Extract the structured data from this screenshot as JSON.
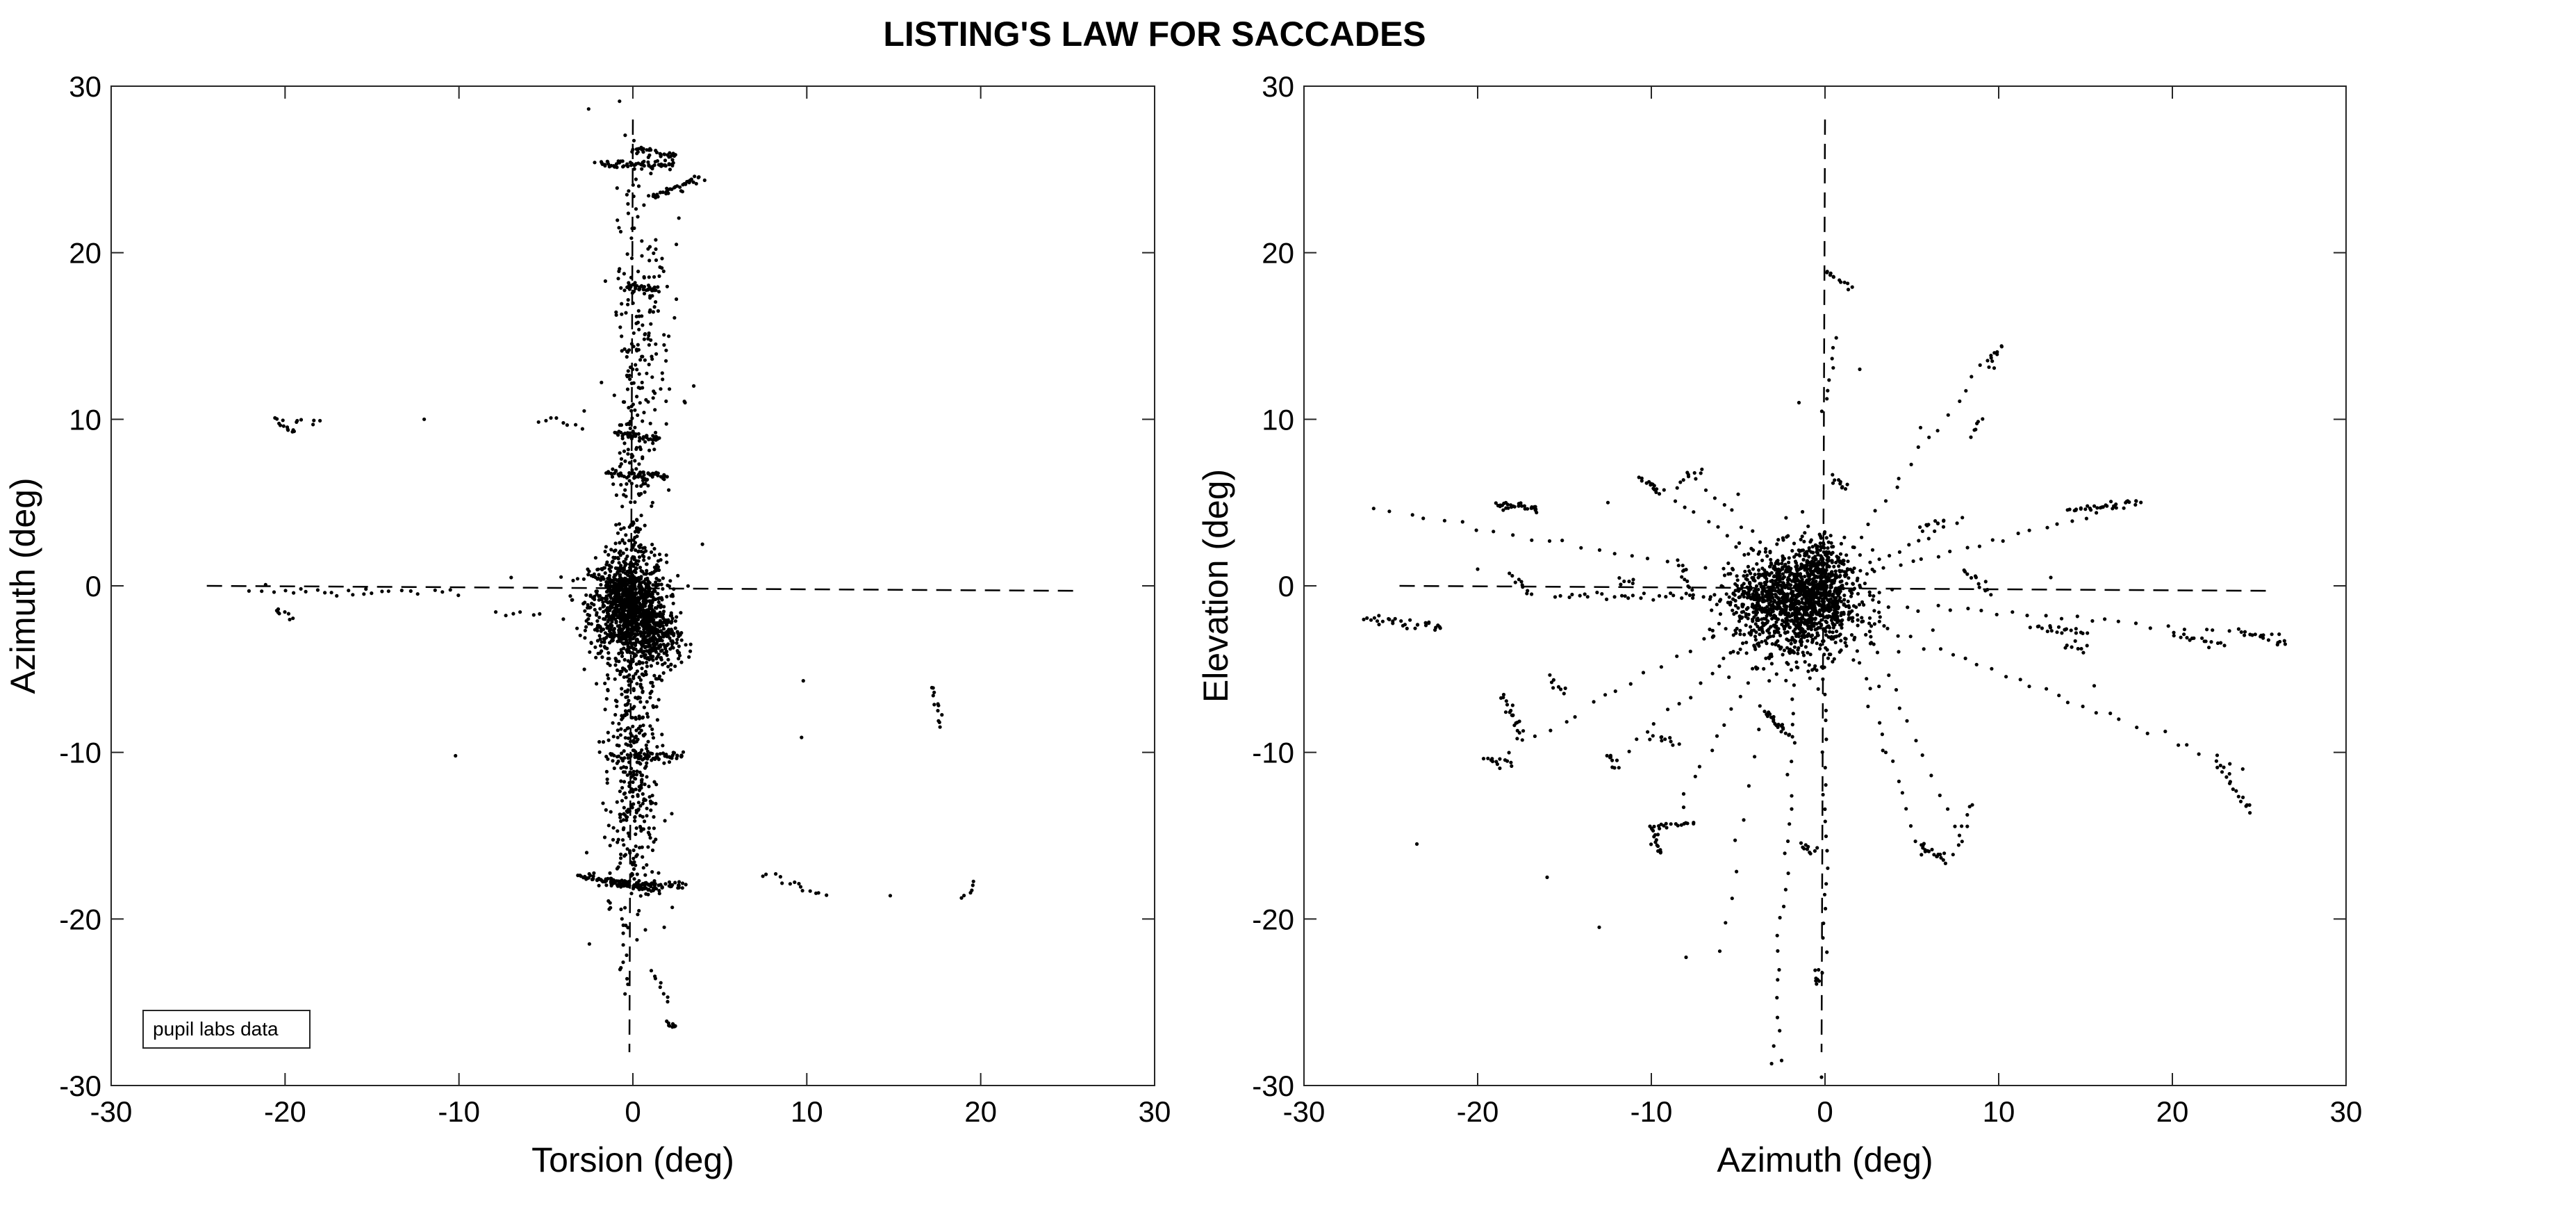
{
  "figure": {
    "title": "LISTING'S LAW FOR SACCADES"
  },
  "chart_data": [
    {
      "type": "scatter",
      "xlabel": "Torsion (deg)",
      "ylabel": "Azimuth (deg)",
      "xlim": [
        -30,
        30
      ],
      "ylim": [
        -30,
        30
      ],
      "xticks": [
        -30,
        -20,
        -10,
        0,
        10,
        20,
        30
      ],
      "yticks": [
        -30,
        -20,
        -10,
        0,
        10,
        20,
        30
      ],
      "grid": false,
      "legend": {
        "label": "pupil labs data",
        "placement": "bottom-left"
      },
      "reference_lines": [
        {
          "style": "dashed",
          "x": [
            -24.5,
            25.5
          ],
          "y": [
            0,
            -0.3
          ]
        },
        {
          "style": "dashed",
          "x": [
            0,
            -0.2
          ],
          "y": [
            28,
            -28
          ]
        }
      ],
      "clusters": [
        {
          "cx": -0.3,
          "cy": -1.2,
          "sx": 1.1,
          "sy": 1.5,
          "n": 1000
        },
        {
          "cx": 1.4,
          "cy": -3.2,
          "sx": 0.7,
          "sy": 1.0,
          "n": 250
        },
        {
          "cx": 0.0,
          "cy": 2.0,
          "sx": 0.6,
          "sy": 8.0,
          "n": 260
        },
        {
          "cx": 0.0,
          "cy": -8.5,
          "sx": 0.8,
          "sy": 5.0,
          "n": 280
        },
        {
          "cx": 0.5,
          "cy": 16.0,
          "sx": 0.9,
          "sy": 6.0,
          "n": 160
        },
        {
          "cx": 0.0,
          "cy": -14.0,
          "sx": 0.7,
          "sy": 3.0,
          "n": 120
        }
      ],
      "segments": [
        {
          "x": [
            -2.0,
            2.5
          ],
          "y": [
            25.3,
            25.3
          ],
          "n": 60
        },
        {
          "x": [
            0.0,
            2.5
          ],
          "y": [
            26.2,
            25.8
          ],
          "n": 30
        },
        {
          "x": [
            1.0,
            3.8
          ],
          "y": [
            23.3,
            24.5
          ],
          "n": 40
        },
        {
          "x": [
            -0.5,
            1.5
          ],
          "y": [
            18.0,
            17.8
          ],
          "n": 30
        },
        {
          "x": [
            -1.0,
            1.5
          ],
          "y": [
            9.2,
            8.8
          ],
          "n": 40
        },
        {
          "x": [
            -1.5,
            2.0
          ],
          "y": [
            6.8,
            6.5
          ],
          "n": 50
        },
        {
          "x": [
            -3.0,
            1.5
          ],
          "y": [
            -17.4,
            -18.3
          ],
          "n": 80
        },
        {
          "x": [
            -1.5,
            3.0
          ],
          "y": [
            -17.8,
            -18.0
          ],
          "n": 70
        },
        {
          "x": [
            0.0,
            3.0
          ],
          "y": [
            -10.2,
            -10.2
          ],
          "n": 40
        },
        {
          "x": [
            2.0,
            2.4
          ],
          "y": [
            -26.3,
            -26.5
          ],
          "n": 10
        },
        {
          "x": [
            -20.5,
            -19.5
          ],
          "y": [
            10.0,
            9.2
          ],
          "n": 12
        },
        {
          "x": [
            -19.5,
            -18.0
          ],
          "y": [
            10.0,
            9.9
          ],
          "n": 6
        },
        {
          "x": [
            -20.5,
            -19.8
          ],
          "y": [
            -1.4,
            -2.0
          ],
          "n": 8
        },
        {
          "x": [
            -5.5,
            -3.0
          ],
          "y": [
            10.2,
            9.5
          ],
          "n": 8
        },
        {
          "x": [
            -22.0,
            -15.0
          ],
          "y": [
            -0.2,
            -0.4
          ],
          "n": 16
        },
        {
          "x": [
            -15.0,
            -10.0
          ],
          "y": [
            -0.3,
            -0.4
          ],
          "n": 10
        },
        {
          "x": [
            -8.0,
            -5.5
          ],
          "y": [
            -1.5,
            -1.8
          ],
          "n": 6
        },
        {
          "x": [
            17.2,
            17.8
          ],
          "y": [
            -6.0,
            -8.5
          ],
          "n": 12
        },
        {
          "x": [
            7.5,
            11.0
          ],
          "y": [
            -17.2,
            -18.6
          ],
          "n": 14
        },
        {
          "x": [
            19.0,
            19.6
          ],
          "y": [
            -18.8,
            -17.8
          ],
          "n": 6
        },
        {
          "x": [
            -0.6,
            -0.3
          ],
          "y": [
            -20.0,
            -24.5
          ],
          "n": 10
        },
        {
          "x": [
            1.0,
            2.0
          ],
          "y": [
            -23.0,
            -25.0
          ],
          "n": 8
        }
      ],
      "isolated_points": [
        [
          -12.0,
          10.0
        ],
        [
          -10.2,
          -10.2
        ],
        [
          9.8,
          -5.7
        ],
        [
          9.7,
          -9.1
        ],
        [
          14.8,
          -18.6
        ],
        [
          -2.8,
          10.5
        ],
        [
          -7.0,
          0.5
        ],
        [
          3.5,
          12.0
        ],
        [
          2.5,
          20.5
        ],
        [
          -0.8,
          21.5
        ],
        [
          3.0,
          11.0
        ],
        [
          -2.5,
          -21.5
        ],
        [
          1.8,
          -20.5
        ],
        [
          4.0,
          2.5
        ],
        [
          -4.0,
          -2.0
        ]
      ]
    },
    {
      "type": "scatter",
      "xlabel": "Azimuth (deg)",
      "ylabel": "Elevation (deg)",
      "xlim": [
        -30,
        30
      ],
      "ylim": [
        -30,
        30
      ],
      "xticks": [
        -30,
        -20,
        -10,
        0,
        10,
        20,
        30
      ],
      "yticks": [
        -30,
        -20,
        -10,
        0,
        10,
        20,
        30
      ],
      "grid": false,
      "reference_lines": [
        {
          "style": "dashed",
          "x": [
            -24.5,
            25.5
          ],
          "y": [
            0,
            -0.3
          ]
        },
        {
          "style": "dashed",
          "x": [
            0,
            -0.2
          ],
          "y": [
            28,
            -28
          ]
        }
      ],
      "clusters": [
        {
          "cx": -1.5,
          "cy": -1.2,
          "sx": 1.8,
          "sy": 1.6,
          "n": 1100
        },
        {
          "cx": -0.3,
          "cy": 0.5,
          "sx": 0.8,
          "sy": 1.3,
          "n": 300
        },
        {
          "cx": -4.0,
          "cy": -0.8,
          "sx": 1.2,
          "sy": 0.5,
          "n": 120
        }
      ],
      "segments": [
        {
          "x": [
            -26.5,
            -22.0
          ],
          "y": [
            -2.0,
            -2.5
          ],
          "n": 30
        },
        {
          "x": [
            -19.0,
            -16.5
          ],
          "y": [
            4.9,
            4.6
          ],
          "n": 30
        },
        {
          "x": [
            -18.0,
            -17.0
          ],
          "y": [
            0.7,
            -0.5
          ],
          "n": 10
        },
        {
          "x": [
            -18.5,
            -17.5
          ],
          "y": [
            -6.5,
            -9.0
          ],
          "n": 20
        },
        {
          "x": [
            -19.5,
            -18.0
          ],
          "y": [
            -10.5,
            -10.6
          ],
          "n": 12
        },
        {
          "x": [
            -16.0,
            -15.0
          ],
          "y": [
            -5.5,
            -6.5
          ],
          "n": 8
        },
        {
          "x": [
            -12.5,
            -12.0
          ],
          "y": [
            -10.0,
            -11.0
          ],
          "n": 8
        },
        {
          "x": [
            -10.5,
            -9.5
          ],
          "y": [
            6.5,
            5.5
          ],
          "n": 14
        },
        {
          "x": [
            -10.0,
            -8.5
          ],
          "y": [
            -9.0,
            -9.5
          ],
          "n": 10
        },
        {
          "x": [
            -10.0,
            -9.5
          ],
          "y": [
            -14.5,
            -16.0
          ],
          "n": 14
        },
        {
          "x": [
            -10.0,
            -7.5
          ],
          "y": [
            -14.5,
            -14.3
          ],
          "n": 16
        },
        {
          "x": [
            -8.5,
            -7.0
          ],
          "y": [
            6.0,
            7.0
          ],
          "n": 8
        },
        {
          "x": [
            -8.5,
            -7.5
          ],
          "y": [
            1.5,
            -0.5
          ],
          "n": 12
        },
        {
          "x": [
            -15.5,
            -6.0
          ],
          "y": [
            -0.6,
            -0.6
          ],
          "n": 30
        },
        {
          "x": [
            -12.0,
            -11.0
          ],
          "y": [
            0.3,
            0.3
          ],
          "n": 6
        },
        {
          "x": [
            -3.5,
            -2.0
          ],
          "y": [
            -7.5,
            -9.0
          ],
          "n": 24
        },
        {
          "x": [
            -1.5,
            -0.5
          ],
          "y": [
            -15.5,
            -16.0
          ],
          "n": 10
        },
        {
          "x": [
            -0.5,
            -0.3
          ],
          "y": [
            -23.0,
            -23.8
          ],
          "n": 8
        },
        {
          "x": [
            0.0,
            1.5
          ],
          "y": [
            18.8,
            18.0
          ],
          "n": 12
        },
        {
          "x": [
            0.0,
            0.5
          ],
          "y": [
            10.5,
            15.0
          ],
          "n": 8
        },
        {
          "x": [
            0.5,
            1.2
          ],
          "y": [
            6.5,
            5.8
          ],
          "n": 10
        },
        {
          "x": [
            5.5,
            7.0
          ],
          "y": [
            -15.5,
            -16.5
          ],
          "n": 18
        },
        {
          "x": [
            7.5,
            8.5
          ],
          "y": [
            -16.0,
            -13.0
          ],
          "n": 8
        },
        {
          "x": [
            8.0,
            9.5
          ],
          "y": [
            1.0,
            -0.5
          ],
          "n": 12
        },
        {
          "x": [
            5.5,
            7.0
          ],
          "y": [
            3.5,
            4.0
          ],
          "n": 10
        },
        {
          "x": [
            9.5,
            10.0
          ],
          "y": [
            13.0,
            14.5
          ],
          "n": 10
        },
        {
          "x": [
            8.5,
            9.0
          ],
          "y": [
            9.0,
            10.0
          ],
          "n": 6
        },
        {
          "x": [
            12.0,
            15.0
          ],
          "y": [
            -2.5,
            -2.8
          ],
          "n": 20
        },
        {
          "x": [
            14.0,
            18.0
          ],
          "y": [
            4.5,
            5.0
          ],
          "n": 30
        },
        {
          "x": [
            14.0,
            15.0
          ],
          "y": [
            -3.5,
            -3.8
          ],
          "n": 8
        },
        {
          "x": [
            20.0,
            23.0
          ],
          "y": [
            -3.0,
            -3.5
          ],
          "n": 16
        },
        {
          "x": [
            24.0,
            26.5
          ],
          "y": [
            -2.8,
            -3.4
          ],
          "n": 16
        },
        {
          "x": [
            22.5,
            24.5
          ],
          "y": [
            -10.5,
            -13.5
          ],
          "n": 18
        },
        {
          "x": [
            -4.5,
            0.5
          ],
          "y": [
            0.5,
            1.5
          ],
          "n": 40
        },
        {
          "x": [
            -26.0,
            -5.0
          ],
          "y": [
            4.6,
            0.6
          ],
          "n": 22
        },
        {
          "x": [
            -19.0,
            -4.0
          ],
          "y": [
            -10.5,
            -1.5
          ],
          "n": 20
        },
        {
          "x": [
            -12.0,
            -3.0
          ],
          "y": [
            -10.5,
            -2.0
          ],
          "n": 16
        },
        {
          "x": [
            -9.5,
            -2.5
          ],
          "y": [
            -15.0,
            -2.5
          ],
          "n": 16
        },
        {
          "x": [
            -3.0,
            -1.5
          ],
          "y": [
            -28.5,
            -3.0
          ],
          "n": 28
        },
        {
          "x": [
            0.0,
            0.0
          ],
          "y": [
            -22.0,
            -4.0
          ],
          "n": 22
        },
        {
          "x": [
            5.5,
            1.5
          ],
          "y": [
            -16.0,
            -3.0
          ],
          "n": 16
        },
        {
          "x": [
            24.0,
            2.0
          ],
          "y": [
            -11.0,
            -2.0
          ],
          "n": 30
        },
        {
          "x": [
            18.0,
            2.0
          ],
          "y": [
            5.0,
            0.5
          ],
          "n": 22
        },
        {
          "x": [
            9.5,
            1.0
          ],
          "y": [
            14.0,
            1.5
          ],
          "n": 18
        },
        {
          "x": [
            8.0,
            1.0
          ],
          "y": [
            4.0,
            0.5
          ],
          "n": 14
        },
        {
          "x": [
            26.0,
            2.0
          ],
          "y": [
            -3.0,
            -1.0
          ],
          "n": 28
        },
        {
          "x": [
            -10.0,
            -2.0
          ],
          "y": [
            6.0,
            0.5
          ],
          "n": 14
        },
        {
          "x": [
            -8.0,
            -2.0
          ],
          "y": [
            7.0,
            1.0
          ],
          "n": 12
        },
        {
          "x": [
            2.0,
            8.0
          ],
          "y": [
            -2.0,
            -15.5
          ],
          "n": 14
        },
        {
          "x": [
            -6.0,
            -3.0
          ],
          "y": [
            -22.0,
            -4.0
          ],
          "n": 12
        }
      ],
      "isolated_points": [
        [
          -23.5,
          -15.5
        ],
        [
          -16.0,
          -17.5
        ],
        [
          -13.0,
          -20.5
        ],
        [
          -8.0,
          -22.3
        ],
        [
          -2.5,
          -28.5
        ],
        [
          -0.2,
          -29.5
        ],
        [
          2.0,
          13.0
        ],
        [
          5.5,
          9.5
        ],
        [
          -5.0,
          5.5
        ],
        [
          -12.5,
          5.0
        ],
        [
          -1.5,
          11.0
        ],
        [
          13.0,
          0.5
        ],
        [
          -20.0,
          1.0
        ],
        [
          15.5,
          -6.0
        ],
        [
          3.5,
          -10.0
        ]
      ]
    }
  ]
}
